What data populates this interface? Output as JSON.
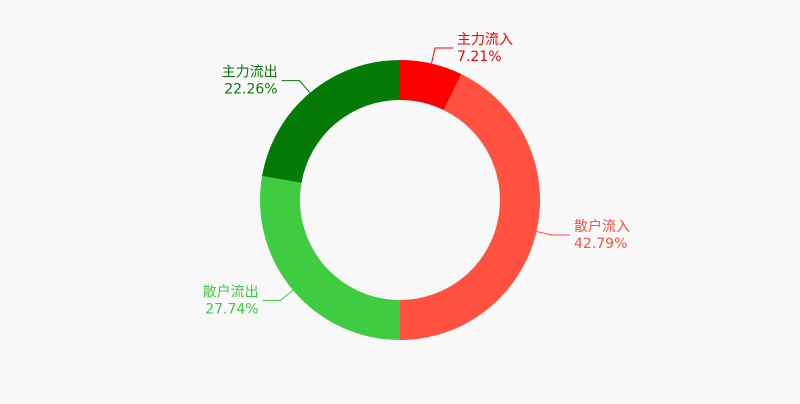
{
  "chart_data": {
    "type": "donut",
    "categories": [
      "主力流入",
      "散户流入",
      "散户流出",
      "主力流出"
    ],
    "values": [
      7.21,
      42.79,
      27.74,
      22.26
    ],
    "value_labels": [
      "7.21%",
      "42.79%",
      "27.74%",
      "22.26%"
    ],
    "colors": [
      "#ff0000",
      "#ff5040",
      "#40cc40",
      "#067a06"
    ]
  }
}
